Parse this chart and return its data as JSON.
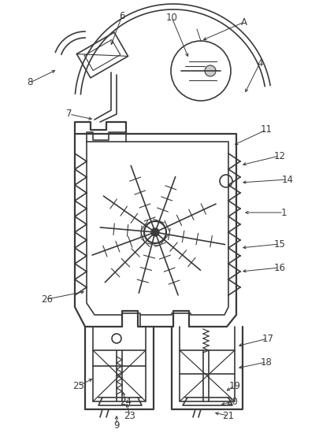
{
  "bg_color": "#ffffff",
  "line_color": "#3a3a3a",
  "fig_width": 4.06,
  "fig_height": 5.59,
  "dpi": 100
}
